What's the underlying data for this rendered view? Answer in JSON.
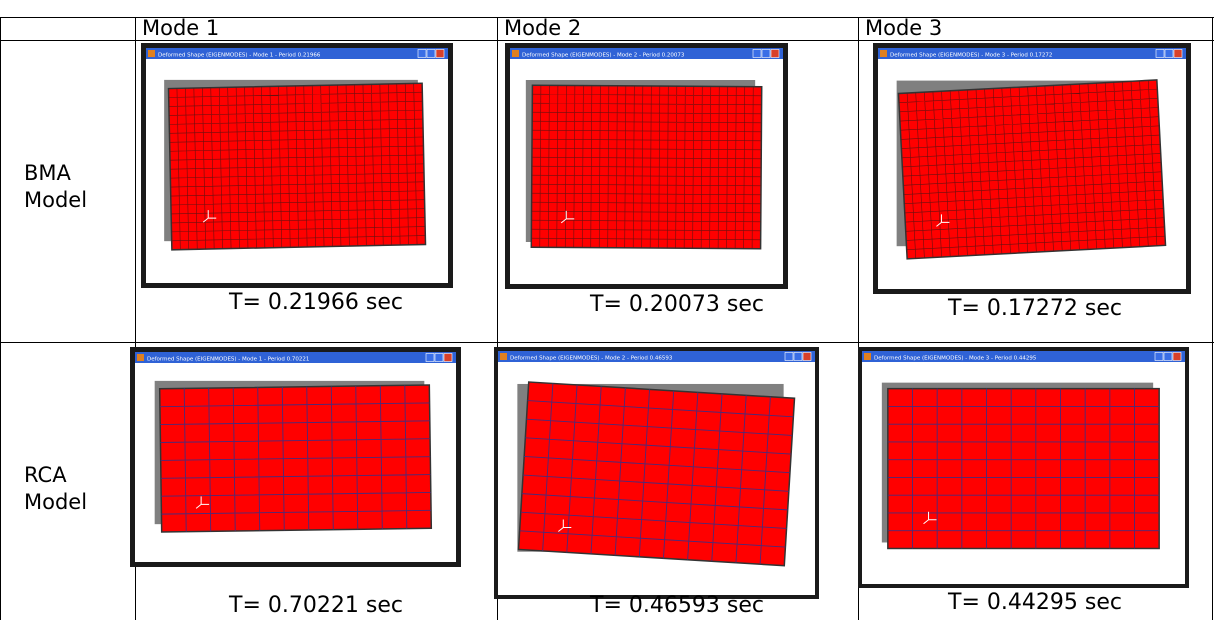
{
  "table": {
    "columns": [
      "Mode 1",
      "Mode 2",
      "Mode 3"
    ],
    "rows": [
      {
        "label": "BMA Model",
        "cells": [
          {
            "window_title": "Deformed Shape (EIGENMODES) - Mode 1 - Period 0.21966",
            "caption": "T= 0.21966 sec"
          },
          {
            "window_title": "Deformed Shape (EIGENMODES) - Mode 2 - Period 0.20073",
            "caption": "T= 0.20073 sec"
          },
          {
            "window_title": "Deformed Shape (EIGENMODES) - Mode 3 - Period 0.17272",
            "caption": "T= 0.17272 sec"
          }
        ]
      },
      {
        "label": "RCA Model",
        "cells": [
          {
            "window_title": "Deformed Shape (EIGENMODES) - Mode 1 - Period 0.70221",
            "caption": "T= 0.70221 sec"
          },
          {
            "window_title": "Deformed Shape (EIGENMODES) - Mode 2 - Period 0.46593",
            "caption": "T= 0.46593 sec"
          },
          {
            "window_title": "Deformed Shape (EIGENMODES) - Mode 3 - Period 0.44295",
            "caption": "T= 0.44295 sec"
          }
        ]
      }
    ]
  }
}
